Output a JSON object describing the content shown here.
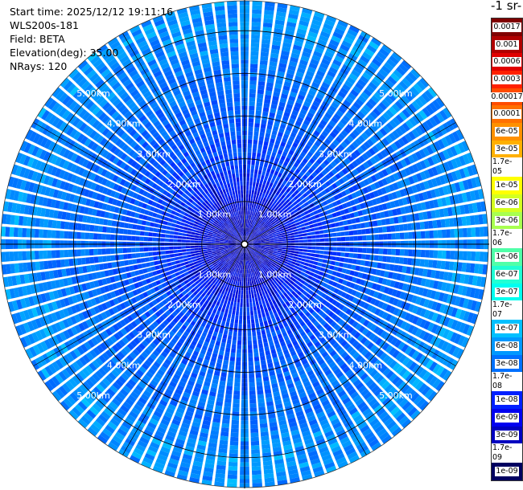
{
  "header": {
    "start_time": "Start time: 2025/12/12 19:11:16",
    "instrument": "WLS200s-181",
    "field": "Field: BETA",
    "elevation": "Elevation(deg): 35.00",
    "nrays": "NRays: 120"
  },
  "unit_label": "-1 sr-",
  "range_rings": [
    "1.00km",
    "2.00km",
    "3.00km",
    "4.00km",
    "5.00km"
  ],
  "colorbar": [
    {
      "label": "0.0017",
      "color": "#800000"
    },
    {
      "label": "0.001",
      "color": "#b00000"
    },
    {
      "label": "0.0006",
      "color": "#e00000"
    },
    {
      "label": "0.0003",
      "color": "#ff2000"
    },
    {
      "label": "0.00017",
      "color": "#ff4c00"
    },
    {
      "label": "0.0001",
      "color": "#ff7000"
    },
    {
      "label": "6e-05",
      "color": "#ff9000"
    },
    {
      "label": "3e-05",
      "color": "#ffb000"
    },
    {
      "label": "1.7e-05",
      "color": "#ffd000"
    },
    {
      "label": "1e-05",
      "color": "#ffff00"
    },
    {
      "label": "6e-06",
      "color": "#d4ff20"
    },
    {
      "label": "3e-06",
      "color": "#a8ff50"
    },
    {
      "label": "1.7e-06",
      "color": "#80ff80"
    },
    {
      "label": "1e-06",
      "color": "#50ffa8"
    },
    {
      "label": "6e-07",
      "color": "#20ffd4"
    },
    {
      "label": "3e-07",
      "color": "#00fff0"
    },
    {
      "label": "1.7e-07",
      "color": "#00e8ff"
    },
    {
      "label": "1e-07",
      "color": "#00c0ff"
    },
    {
      "label": "6e-08",
      "color": "#0098ff"
    },
    {
      "label": "3e-08",
      "color": "#0070ff"
    },
    {
      "label": "1.7e-08",
      "color": "#0048ff"
    },
    {
      "label": "1e-08",
      "color": "#0020ff"
    },
    {
      "label": "6e-09",
      "color": "#0000f0"
    },
    {
      "label": "3e-09",
      "color": "#0000c0"
    },
    {
      "label": "1.7e-09",
      "color": "#000090"
    },
    {
      "label": "1e-09",
      "color": "#000060"
    }
  ],
  "chart_data": {
    "type": "heatmap",
    "projection": "polar",
    "field": "BETA",
    "elevation_deg": 35.0,
    "n_rays": 120,
    "range_unit": "km",
    "range_max_km": 5.7,
    "range_rings_km": [
      1,
      2,
      3,
      4,
      5
    ],
    "color_scale": "log",
    "color_range": [
      1e-09,
      0.0017
    ],
    "radial_profile_log10": [
      {
        "r_km": 0.0,
        "value": -8.6
      },
      {
        "r_km": 0.5,
        "value": -8.5
      },
      {
        "r_km": 1.0,
        "value": -8.3
      },
      {
        "r_km": 1.5,
        "value": -8.0
      },
      {
        "r_km": 2.0,
        "value": -7.8
      },
      {
        "r_km": 3.0,
        "value": -7.6
      },
      {
        "r_km": 4.0,
        "value": -7.45
      },
      {
        "r_km": 5.0,
        "value": -7.3
      },
      {
        "r_km": 5.7,
        "value": -7.3
      }
    ]
  }
}
